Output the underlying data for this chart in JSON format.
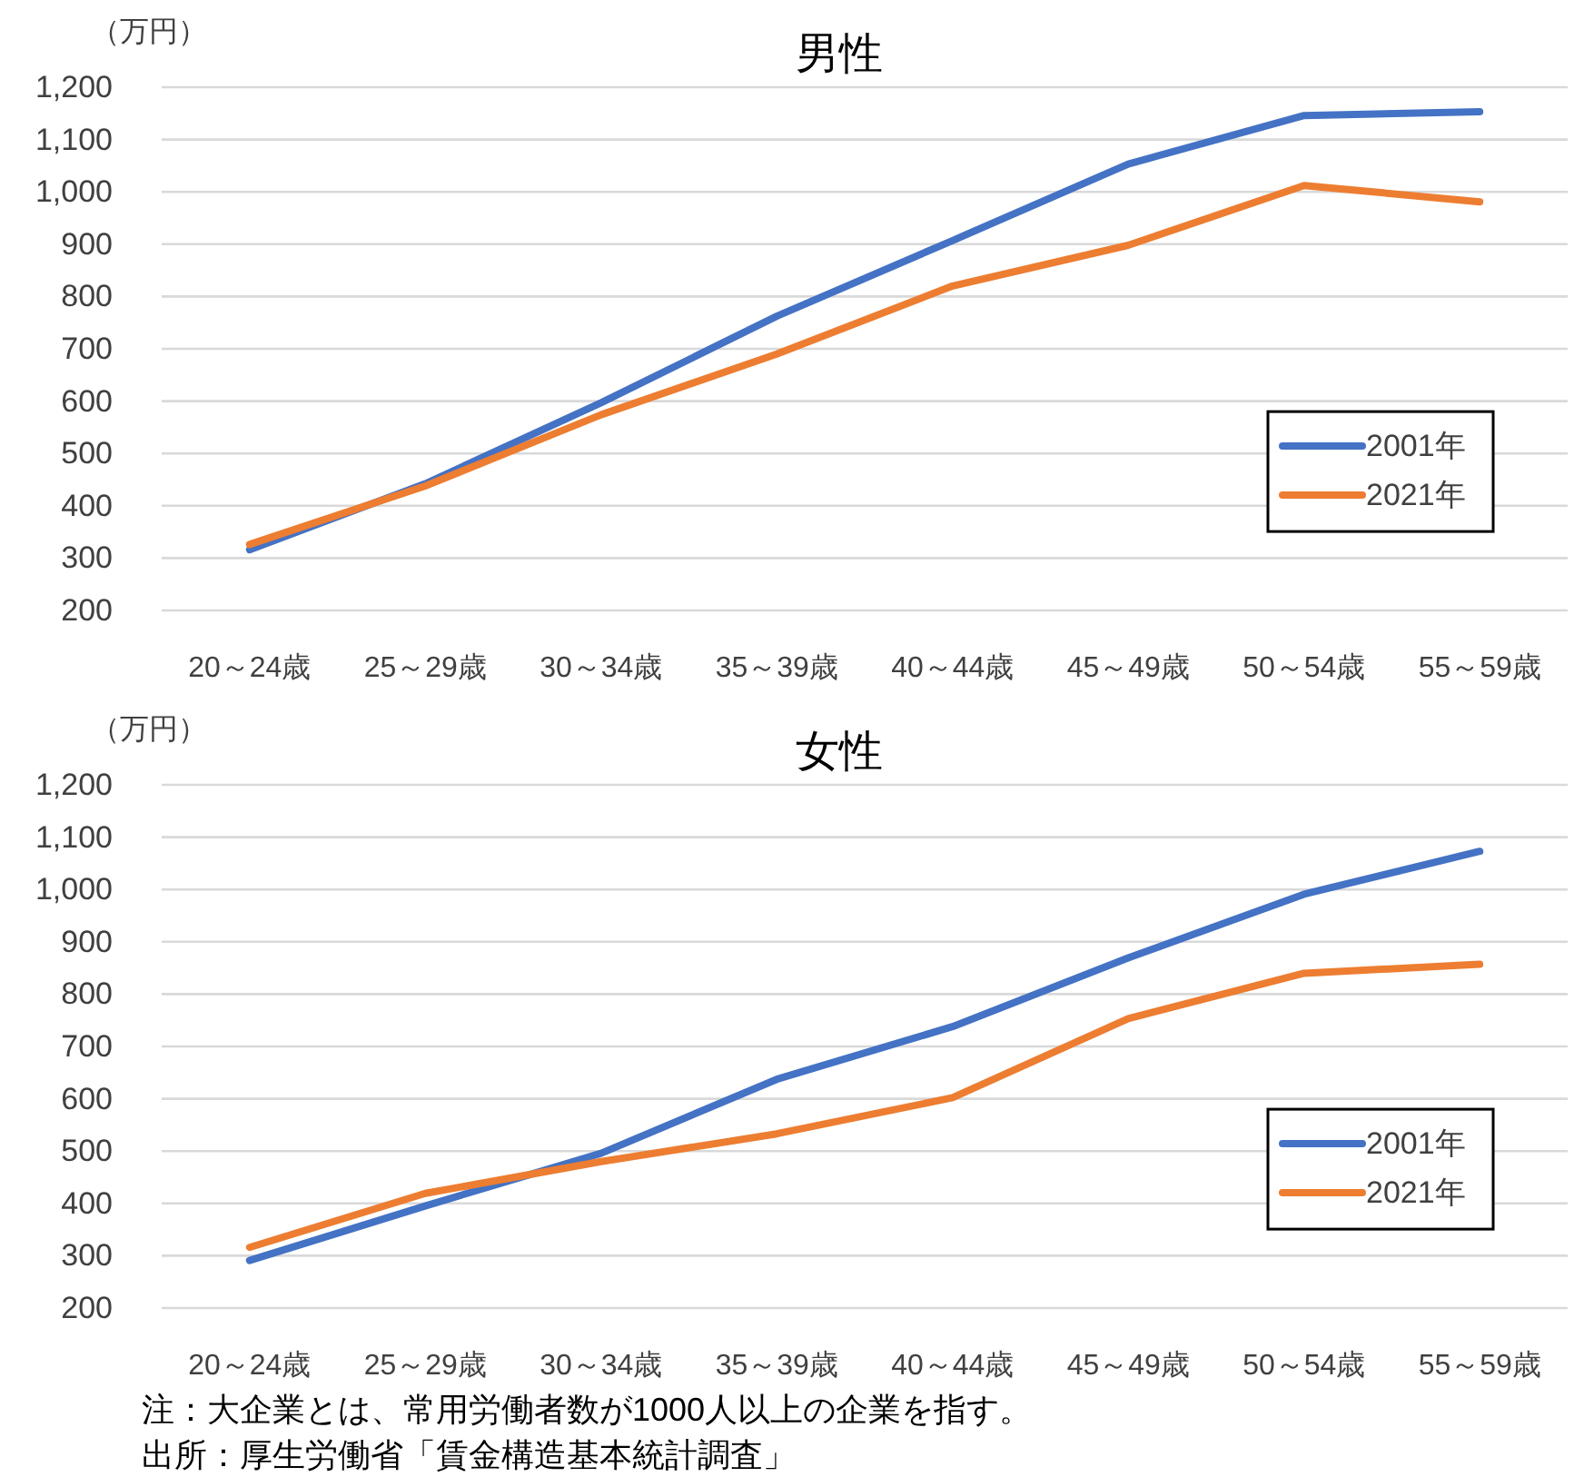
{
  "chart_data": [
    {
      "type": "line",
      "title": "男性",
      "ylabel": "（万円）",
      "categories": [
        "20～24歳",
        "25～29歳",
        "30～34歳",
        "35～39歳",
        "40～44歳",
        "45～49歳",
        "50～54歳",
        "55～59歳"
      ],
      "series": [
        {
          "name": "2001年",
          "color": "#4472c4",
          "values": [
            316,
            442,
            597,
            762,
            907,
            1053,
            1146,
            1153
          ]
        },
        {
          "name": "2021年",
          "color": "#ed7d31",
          "values": [
            326,
            438,
            574,
            690,
            820,
            898,
            1012,
            981
          ]
        }
      ],
      "ylim": [
        200,
        1200
      ],
      "yticks": [
        200,
        300,
        400,
        500,
        600,
        700,
        800,
        900,
        {
          "value": 1000,
          "label": "1,000"
        },
        {
          "value": 1100,
          "label": "1,100"
        },
        {
          "value": 1200,
          "label": "1,200"
        }
      ],
      "grid": "y",
      "legend": "right",
      "marker": "none",
      "line_style": "solid"
    },
    {
      "type": "line",
      "title": "女性",
      "ylabel": "（万円）",
      "categories": [
        "20～24歳",
        "25～29歳",
        "30～34歳",
        "35～39歳",
        "40～44歳",
        "45～49歳",
        "50～54歳",
        "55～59歳"
      ],
      "series": [
        {
          "name": "2001年",
          "color": "#4472c4",
          "values": [
            291,
            395,
            496,
            637,
            738,
            869,
            991,
            1073
          ]
        },
        {
          "name": "2021年",
          "color": "#ed7d31",
          "values": [
            316,
            419,
            480,
            533,
            602,
            753,
            840,
            857
          ]
        }
      ],
      "ylim": [
        200,
        1200
      ],
      "yticks": [
        200,
        300,
        400,
        500,
        600,
        700,
        800,
        900,
        {
          "value": 1000,
          "label": "1,000"
        },
        {
          "value": 1100,
          "label": "1,100"
        },
        {
          "value": 1200,
          "label": "1,200"
        }
      ],
      "grid": "y",
      "legend": "right",
      "marker": "none",
      "line_style": "solid",
      "annotations": [
        "注：大企業とは、常用労働者数が1000人以上の企業を指す。",
        "出所：厚生労働省「賃金構造基本統計調査」"
      ]
    }
  ]
}
